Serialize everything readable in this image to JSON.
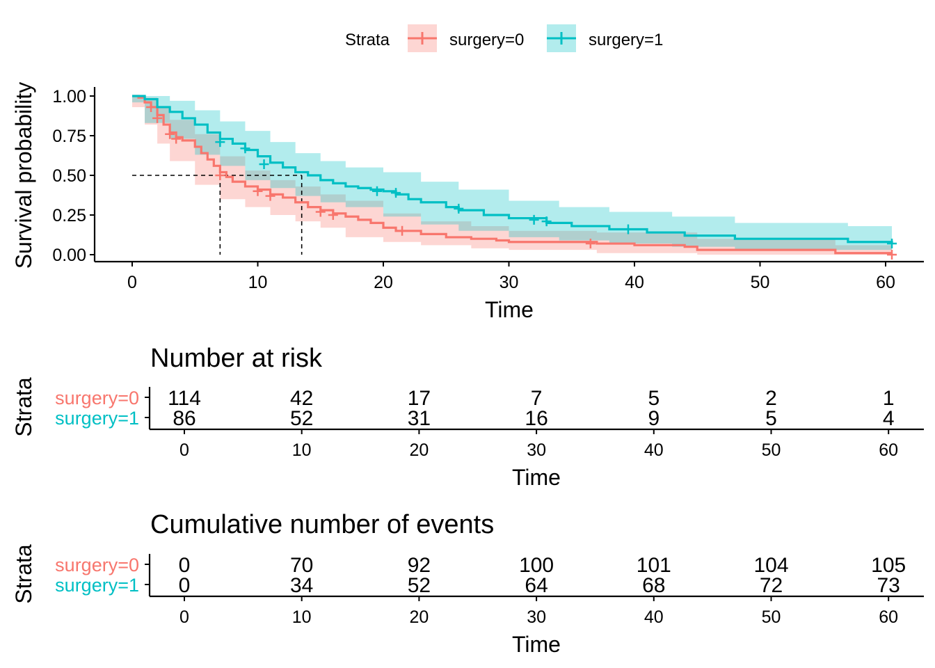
{
  "legend": {
    "title": "Strata",
    "labels": [
      "surgery=0",
      "surgery=1"
    ]
  },
  "colors": {
    "surgery0": "#F8766D",
    "surgery1": "#00BFC4",
    "surgery0_fill": "#F8766D",
    "surgery1_fill": "#00BFC4"
  },
  "chart_data": [
    {
      "type": "line",
      "subtype": "kaplan-meier step",
      "xlabel": "Time",
      "ylabel": "Survival probability",
      "xlim": [
        0,
        60
      ],
      "ylim": [
        0,
        1
      ],
      "xticks": [
        "0",
        "10",
        "20",
        "30",
        "40",
        "50",
        "60"
      ],
      "yticks": [
        "0.00",
        "0.25",
        "0.50",
        "0.75",
        "1.00"
      ],
      "grid": false,
      "legend_position": "top",
      "median_survival": [
        7,
        13.5
      ],
      "series": [
        {
          "name": "surgery=0",
          "steps": [
            [
              0,
              1.0
            ],
            [
              0.5,
              0.99
            ],
            [
              1,
              0.96
            ],
            [
              1.5,
              0.93
            ],
            [
              2,
              0.88
            ],
            [
              2.5,
              0.82
            ],
            [
              3,
              0.77
            ],
            [
              3.5,
              0.74
            ],
            [
              4,
              0.72
            ],
            [
              5,
              0.68
            ],
            [
              5.5,
              0.64
            ],
            [
              6,
              0.6
            ],
            [
              6.5,
              0.56
            ],
            [
              7,
              0.52
            ],
            [
              7.5,
              0.49
            ],
            [
              8,
              0.46
            ],
            [
              9,
              0.43
            ],
            [
              10,
              0.41
            ],
            [
              11,
              0.38
            ],
            [
              12,
              0.36
            ],
            [
              13,
              0.33
            ],
            [
              14,
              0.3
            ],
            [
              15,
              0.28
            ],
            [
              16,
              0.26
            ],
            [
              17,
              0.24
            ],
            [
              18,
              0.22
            ],
            [
              19,
              0.2
            ],
            [
              20,
              0.17
            ],
            [
              21,
              0.15
            ],
            [
              23,
              0.13
            ],
            [
              25,
              0.11
            ],
            [
              27,
              0.1
            ],
            [
              29,
              0.09
            ],
            [
              30,
              0.08
            ],
            [
              37,
              0.07
            ],
            [
              40,
              0.06
            ],
            [
              44,
              0.05
            ],
            [
              45,
              0.03
            ],
            [
              56,
              0.01
            ],
            [
              60.5,
              0.01
            ]
          ],
          "censored": [
            [
              1.5,
              0.93
            ],
            [
              2,
              0.86
            ],
            [
              3,
              0.76
            ],
            [
              3.5,
              0.73
            ],
            [
              7,
              0.5
            ],
            [
              10,
              0.4
            ],
            [
              11,
              0.37
            ],
            [
              15,
              0.27
            ],
            [
              16,
              0.25
            ],
            [
              21.5,
              0.15
            ],
            [
              36.5,
              0.07
            ],
            [
              60.5,
              0.0
            ]
          ],
          "ci_upper": [
            [
              0,
              1.0
            ],
            [
              1,
              0.99
            ],
            [
              2,
              0.93
            ],
            [
              3,
              0.85
            ],
            [
              5,
              0.76
            ],
            [
              7,
              0.62
            ],
            [
              9,
              0.53
            ],
            [
              11,
              0.47
            ],
            [
              13,
              0.43
            ],
            [
              15,
              0.38
            ],
            [
              17,
              0.34
            ],
            [
              20,
              0.26
            ],
            [
              23,
              0.21
            ],
            [
              27,
              0.18
            ],
            [
              30,
              0.15
            ],
            [
              37,
              0.14
            ],
            [
              45,
              0.1
            ],
            [
              56,
              0.06
            ],
            [
              60.5,
              0.06
            ]
          ],
          "ci_lower": [
            [
              0,
              1.0
            ],
            [
              1,
              0.93
            ],
            [
              2,
              0.82
            ],
            [
              3,
              0.7
            ],
            [
              5,
              0.59
            ],
            [
              7,
              0.44
            ],
            [
              9,
              0.35
            ],
            [
              11,
              0.3
            ],
            [
              13,
              0.25
            ],
            [
              15,
              0.21
            ],
            [
              17,
              0.17
            ],
            [
              20,
              0.11
            ],
            [
              23,
              0.08
            ],
            [
              27,
              0.06
            ],
            [
              30,
              0.04
            ],
            [
              37,
              0.03
            ],
            [
              45,
              0.01
            ],
            [
              56,
              0.0
            ],
            [
              60.5,
              0.0
            ]
          ]
        },
        {
          "name": "surgery=1",
          "steps": [
            [
              0,
              1.0
            ],
            [
              1,
              0.98
            ],
            [
              2,
              0.93
            ],
            [
              3,
              0.9
            ],
            [
              4,
              0.86
            ],
            [
              5,
              0.82
            ],
            [
              6,
              0.77
            ],
            [
              7,
              0.73
            ],
            [
              8,
              0.7
            ],
            [
              9,
              0.66
            ],
            [
              10,
              0.62
            ],
            [
              11,
              0.58
            ],
            [
              12,
              0.55
            ],
            [
              13,
              0.52
            ],
            [
              14,
              0.5
            ],
            [
              15,
              0.47
            ],
            [
              16,
              0.45
            ],
            [
              17,
              0.43
            ],
            [
              18,
              0.42
            ],
            [
              19,
              0.41
            ],
            [
              20,
              0.4
            ],
            [
              21,
              0.38
            ],
            [
              22,
              0.35
            ],
            [
              23,
              0.33
            ],
            [
              25,
              0.3
            ],
            [
              26,
              0.28
            ],
            [
              28,
              0.25
            ],
            [
              30,
              0.23
            ],
            [
              33,
              0.2
            ],
            [
              35,
              0.18
            ],
            [
              38,
              0.16
            ],
            [
              41,
              0.14
            ],
            [
              44,
              0.12
            ],
            [
              48,
              0.1
            ],
            [
              57,
              0.08
            ],
            [
              60.5,
              0.07
            ]
          ],
          "censored": [
            [
              7,
              0.71
            ],
            [
              9,
              0.67
            ],
            [
              10.5,
              0.57
            ],
            [
              19.5,
              0.4
            ],
            [
              21,
              0.39
            ],
            [
              26,
              0.29
            ],
            [
              32,
              0.22
            ],
            [
              33,
              0.21
            ],
            [
              39.5,
              0.16
            ],
            [
              60.5,
              0.07
            ]
          ],
          "ci_upper": [
            [
              0,
              1.0
            ],
            [
              1,
              1.0
            ],
            [
              3,
              0.97
            ],
            [
              5,
              0.91
            ],
            [
              7,
              0.84
            ],
            [
              9,
              0.78
            ],
            [
              11,
              0.71
            ],
            [
              13,
              0.64
            ],
            [
              15,
              0.59
            ],
            [
              17,
              0.55
            ],
            [
              20,
              0.52
            ],
            [
              23,
              0.46
            ],
            [
              26,
              0.41
            ],
            [
              30,
              0.34
            ],
            [
              34,
              0.3
            ],
            [
              38,
              0.27
            ],
            [
              43,
              0.24
            ],
            [
              48,
              0.2
            ],
            [
              57,
              0.18
            ],
            [
              60.5,
              0.17
            ]
          ],
          "ci_lower": [
            [
              0,
              1.0
            ],
            [
              1,
              0.96
            ],
            [
              3,
              0.83
            ],
            [
              5,
              0.73
            ],
            [
              7,
              0.63
            ],
            [
              9,
              0.56
            ],
            [
              11,
              0.47
            ],
            [
              13,
              0.42
            ],
            [
              15,
              0.37
            ],
            [
              17,
              0.33
            ],
            [
              20,
              0.3
            ],
            [
              23,
              0.24
            ],
            [
              26,
              0.19
            ],
            [
              30,
              0.15
            ],
            [
              34,
              0.11
            ],
            [
              38,
              0.09
            ],
            [
              43,
              0.07
            ],
            [
              48,
              0.05
            ],
            [
              57,
              0.03
            ],
            [
              60.5,
              0.03
            ]
          ]
        }
      ]
    },
    {
      "type": "table",
      "title": "Number at risk",
      "xlabel": "Time",
      "ylabel": "Strata",
      "x": [
        0,
        10,
        20,
        30,
        40,
        50,
        60
      ],
      "xticks": [
        "0",
        "10",
        "20",
        "30",
        "40",
        "50",
        "60"
      ],
      "rows": [
        {
          "name": "surgery=0",
          "values": [
            "114",
            "42",
            "17",
            "7",
            "5",
            "2",
            "1"
          ]
        },
        {
          "name": "surgery=1",
          "values": [
            "86",
            "52",
            "31",
            "16",
            "9",
            "5",
            "4"
          ]
        }
      ]
    },
    {
      "type": "table",
      "title": "Cumulative number of events",
      "xlabel": "Time",
      "ylabel": "Strata",
      "x": [
        0,
        10,
        20,
        30,
        40,
        50,
        60
      ],
      "xticks": [
        "0",
        "10",
        "20",
        "30",
        "40",
        "50",
        "60"
      ],
      "rows": [
        {
          "name": "surgery=0",
          "values": [
            "0",
            "70",
            "92",
            "100",
            "101",
            "104",
            "105"
          ]
        },
        {
          "name": "surgery=1",
          "values": [
            "0",
            "34",
            "52",
            "64",
            "68",
            "72",
            "73"
          ]
        }
      ]
    }
  ]
}
